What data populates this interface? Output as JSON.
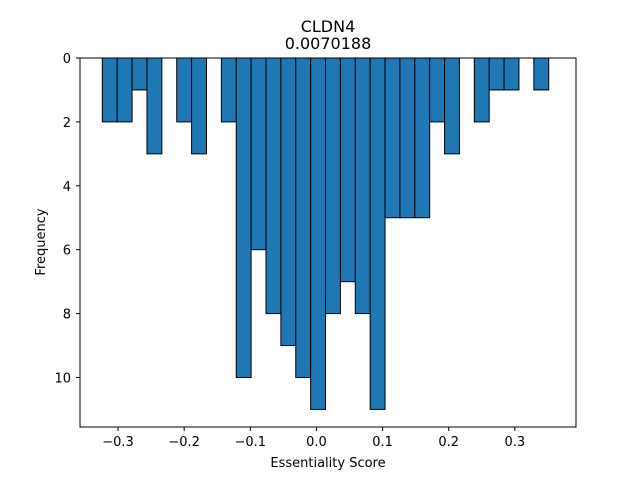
{
  "chart_data": {
    "type": "bar",
    "title": "CLDN4",
    "subtitle": "0.0070188",
    "xlabel": "Essentiality Score",
    "ylabel": "Frequency",
    "xlim": [
      -0.3575,
      0.3925
    ],
    "ylim": [
      0,
      11.55
    ],
    "y_inverted": true,
    "x_ticks": [
      -0.3,
      -0.2,
      -0.1,
      0.0,
      0.1,
      0.2,
      0.3
    ],
    "x_tick_labels": [
      "−0.3",
      "−0.2",
      "−0.1",
      "0.0",
      "0.1",
      "0.2",
      "0.3"
    ],
    "y_ticks": [
      0,
      2,
      4,
      6,
      8,
      10
    ],
    "y_tick_labels": [
      "0",
      "2",
      "4",
      "6",
      "8",
      "10"
    ],
    "bar_width": 0.0225,
    "bin_centers": [
      -0.3125,
      -0.29,
      -0.2675,
      -0.245,
      -0.2225,
      -0.2,
      -0.1775,
      -0.155,
      -0.1325,
      -0.11,
      -0.0875,
      -0.065,
      -0.0425,
      -0.02,
      0.0025,
      0.025,
      0.0475,
      0.07,
      0.0925,
      0.115,
      0.1375,
      0.16,
      0.1825,
      0.205,
      0.2275,
      0.25,
      0.2725,
      0.295,
      0.3175,
      0.34,
      0.3625
    ],
    "values": [
      2,
      2,
      1,
      3,
      0,
      2,
      3,
      0,
      2,
      10,
      6,
      8,
      9,
      10,
      11,
      8,
      7,
      8,
      11,
      5,
      5,
      5,
      2,
      3,
      0,
      2,
      1,
      1,
      0,
      1,
      0
    ],
    "bar_color": "#1f77b4",
    "edge_color": "#000000",
    "grid": false
  }
}
